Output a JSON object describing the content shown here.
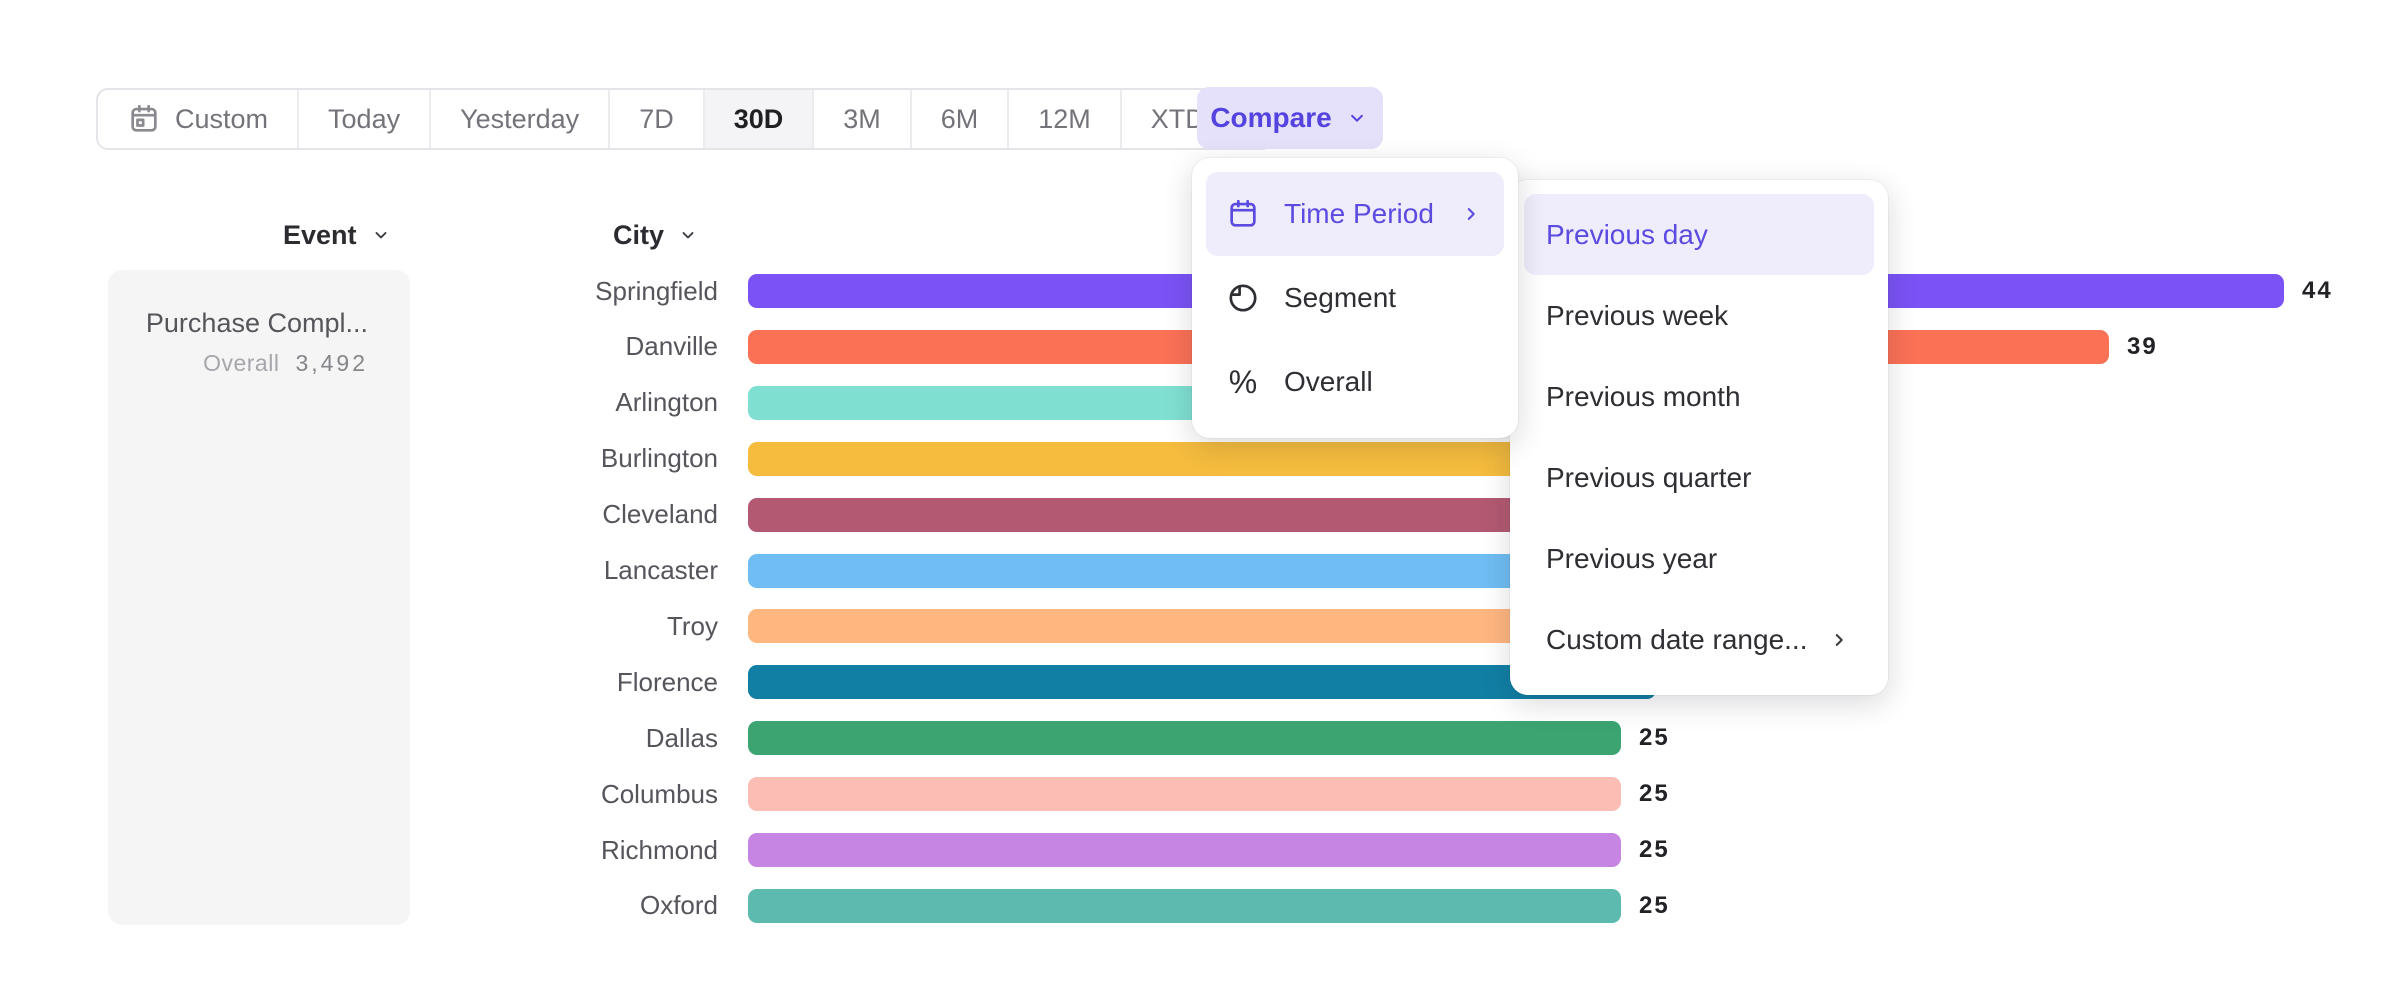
{
  "colors": {
    "accent_purple": "#5B4BE0",
    "accent_purple_bg": "#E5E1FA",
    "menu_highlight_bg": "#EFECFB",
    "toolbar_border": "#E5E5E9",
    "toolbar_text": "#73737A",
    "toolbar_selected_text": "#1F1F24",
    "toolbar_selected_bg": "#F4F4F6",
    "label_text": "#55555C",
    "value_text": "#222226",
    "card_bg": "#F5F5F6"
  },
  "toolbar": {
    "items": [
      {
        "label": "Custom",
        "icon": "calendar",
        "selected": false
      },
      {
        "label": "Today",
        "selected": false
      },
      {
        "label": "Yesterday",
        "selected": false
      },
      {
        "label": "7D",
        "selected": false
      },
      {
        "label": "30D",
        "selected": true
      },
      {
        "label": "3M",
        "selected": false
      },
      {
        "label": "6M",
        "selected": false
      },
      {
        "label": "12M",
        "selected": false
      },
      {
        "label": "XTD",
        "chevron": "down",
        "selected": false
      }
    ],
    "compare_label": "Compare"
  },
  "compare_menu": {
    "items": [
      {
        "label": "Time Period",
        "icon": "calendar",
        "active": true,
        "chevron": "right"
      },
      {
        "label": "Segment",
        "icon": "segment",
        "active": false
      },
      {
        "label": "Overall",
        "icon": "percent",
        "active": false
      }
    ]
  },
  "time_period_submenu": {
    "items": [
      {
        "label": "Previous day",
        "active": true
      },
      {
        "label": "Previous week",
        "active": false
      },
      {
        "label": "Previous month",
        "active": false
      },
      {
        "label": "Previous quarter",
        "active": false
      },
      {
        "label": "Previous year",
        "active": false
      },
      {
        "label": "Custom date range...",
        "active": false,
        "chevron": "right"
      }
    ]
  },
  "event_panel": {
    "header": "Event",
    "event_name": "Purchase Compl...",
    "overall_label": "Overall",
    "overall_value": "3,492"
  },
  "chart_data": {
    "type": "bar",
    "orientation": "horizontal",
    "group_label": "City",
    "categories": [
      "Springfield",
      "Danville",
      "Arlington",
      "Burlington",
      "Cleveland",
      "Lancaster",
      "Troy",
      "Florence",
      "Dallas",
      "Columbus",
      "Richmond",
      "Oxford"
    ],
    "values": [
      44,
      39,
      32,
      31,
      30,
      28,
      27,
      26,
      25,
      25,
      25,
      25
    ],
    "visible_value_labels": [
      "44",
      "39",
      null,
      null,
      null,
      null,
      null,
      null,
      "25",
      "25",
      "25",
      "25"
    ],
    "bar_colors": [
      "#7A52F5",
      "#FA7156",
      "#7FE0D2",
      "#F5BC3E",
      "#B35A72",
      "#6FBDF3",
      "#FFB780",
      "#117FA4",
      "#3BA471",
      "#FBBDB4",
      "#C684E3",
      "#5CBAAE"
    ],
    "xlim": [
      0,
      44
    ],
    "legend": "none",
    "grid": false
  }
}
